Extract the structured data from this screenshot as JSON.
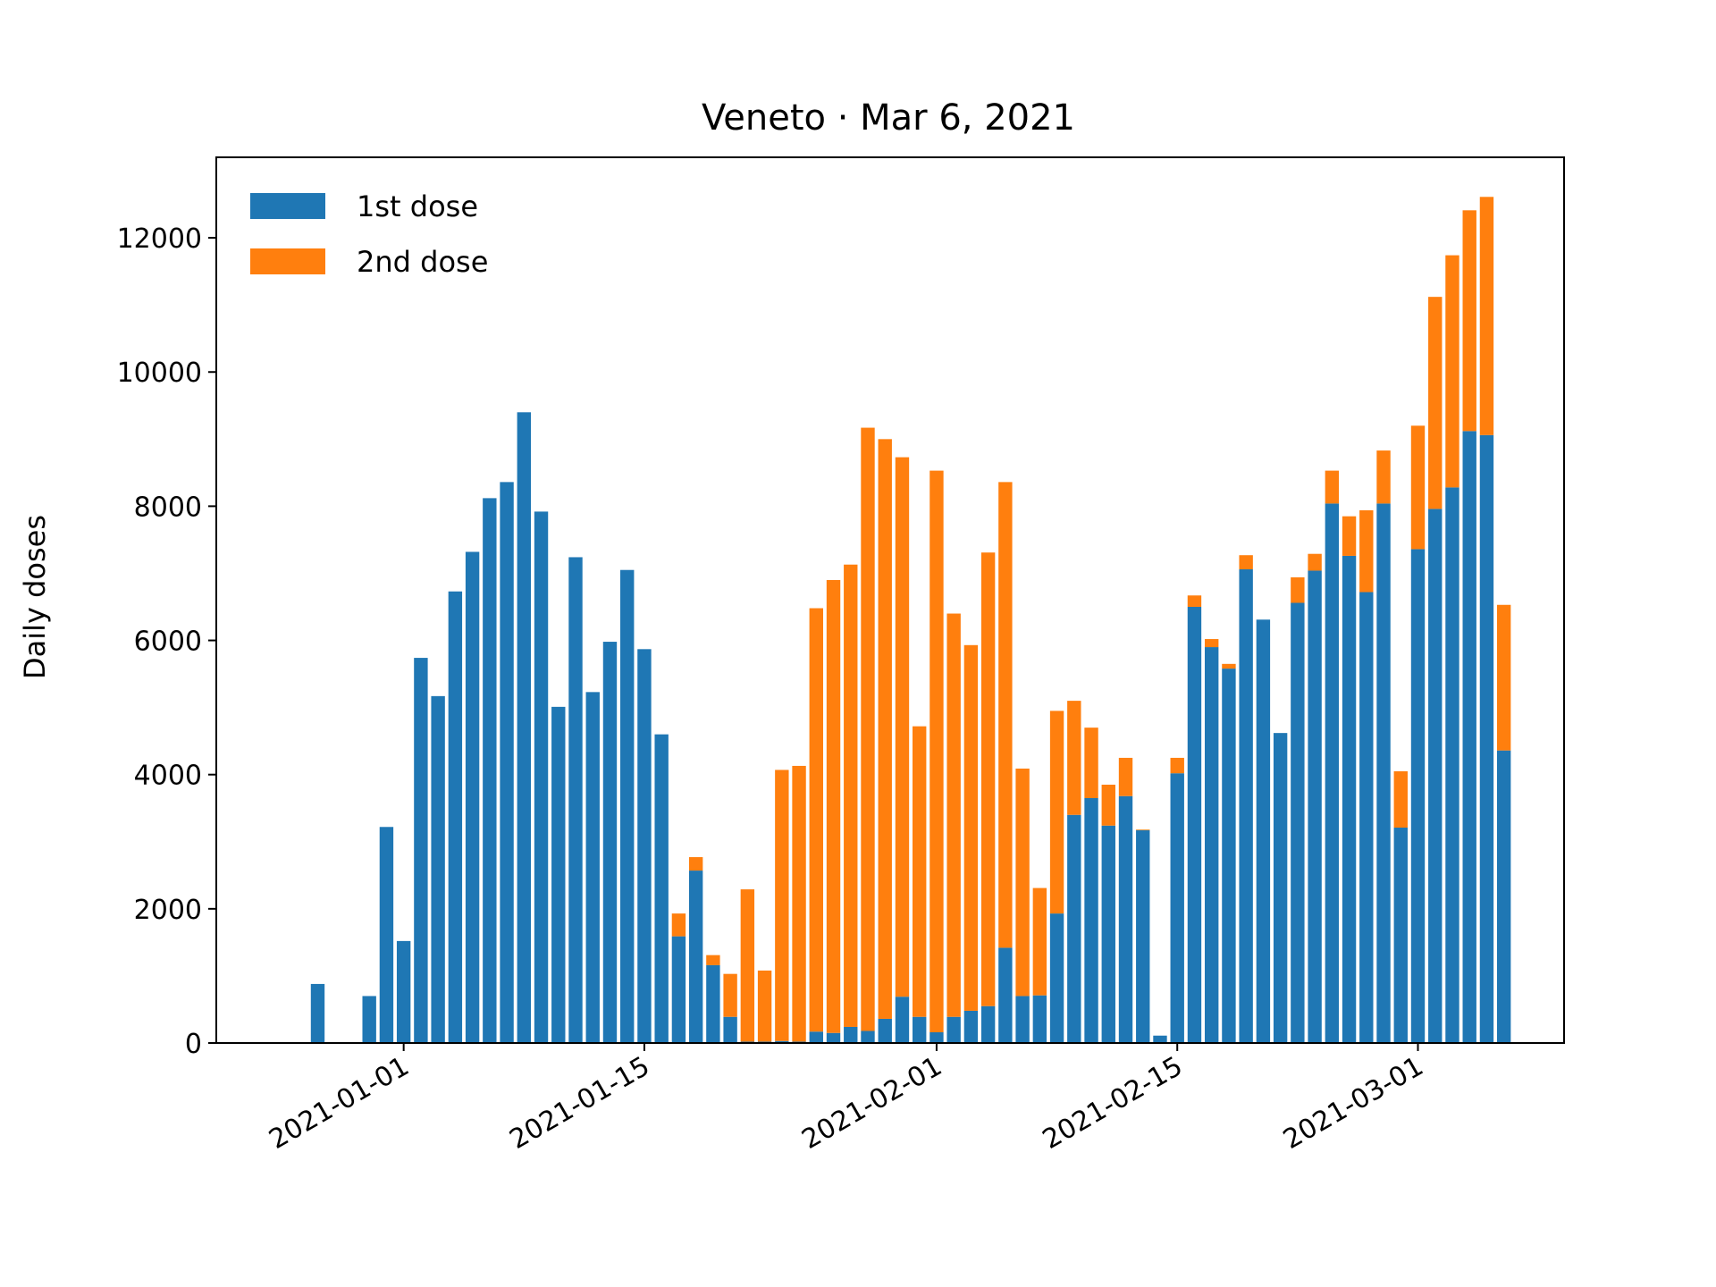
{
  "chart_data": {
    "type": "bar",
    "stacked": true,
    "title": "Veneto · Mar 6, 2021",
    "xlabel": "",
    "ylabel": "Daily doses",
    "ylim": [
      0,
      13200
    ],
    "yticks": [
      0,
      2000,
      4000,
      6000,
      8000,
      10000,
      12000
    ],
    "xtick_labels": [
      "2021-01-01",
      "2021-01-15",
      "2021-02-01",
      "2021-02-15",
      "2021-03-01"
    ],
    "grid": false,
    "legend": "top-left",
    "x": [
      "2020-12-27",
      "2020-12-28",
      "2020-12-29",
      "2020-12-30",
      "2020-12-31",
      "2021-01-01",
      "2021-01-02",
      "2021-01-03",
      "2021-01-04",
      "2021-01-05",
      "2021-01-06",
      "2021-01-07",
      "2021-01-08",
      "2021-01-09",
      "2021-01-10",
      "2021-01-11",
      "2021-01-12",
      "2021-01-13",
      "2021-01-14",
      "2021-01-15",
      "2021-01-16",
      "2021-01-17",
      "2021-01-18",
      "2021-01-19",
      "2021-01-20",
      "2021-01-21",
      "2021-01-22",
      "2021-01-23",
      "2021-01-24",
      "2021-01-25",
      "2021-01-26",
      "2021-01-27",
      "2021-01-28",
      "2021-01-29",
      "2021-01-30",
      "2021-01-31",
      "2021-02-01",
      "2021-02-02",
      "2021-02-03",
      "2021-02-04",
      "2021-02-05",
      "2021-02-06",
      "2021-02-07",
      "2021-02-08",
      "2021-02-09",
      "2021-02-10",
      "2021-02-11",
      "2021-02-12",
      "2021-02-13",
      "2021-02-14",
      "2021-02-15",
      "2021-02-16",
      "2021-02-17",
      "2021-02-18",
      "2021-02-19",
      "2021-02-20",
      "2021-02-21",
      "2021-02-22",
      "2021-02-23",
      "2021-02-24",
      "2021-02-25",
      "2021-02-26",
      "2021-02-27",
      "2021-02-28",
      "2021-03-01",
      "2021-03-02",
      "2021-03-03",
      "2021-03-04",
      "2021-03-05",
      "2021-03-06"
    ],
    "series": [
      {
        "name": "1st dose",
        "color": "#1f77b4",
        "values": [
          880,
          0,
          0,
          700,
          3220,
          1520,
          5740,
          5170,
          6730,
          7320,
          8120,
          8360,
          9400,
          7920,
          5010,
          7240,
          5230,
          5980,
          7050,
          5870,
          4600,
          1590,
          2570,
          1160,
          390,
          20,
          20,
          30,
          20,
          170,
          150,
          240,
          180,
          360,
          690,
          390,
          160,
          390,
          480,
          550,
          1420,
          700,
          710,
          1930,
          3400,
          3650,
          3240,
          3680,
          3170,
          110,
          4020,
          6500,
          5900,
          5580,
          7060,
          6310,
          4620,
          6560,
          7040,
          8040,
          7260,
          6720,
          8040,
          3210,
          7360,
          7960,
          8280,
          9120,
          9060,
          4360
        ]
      },
      {
        "name": "2nd dose",
        "color": "#ff7f0e",
        "values": [
          0,
          0,
          0,
          0,
          0,
          0,
          0,
          0,
          0,
          0,
          0,
          0,
          0,
          0,
          0,
          0,
          0,
          0,
          0,
          0,
          0,
          340,
          200,
          150,
          640,
          2270,
          1060,
          4040,
          4110,
          6310,
          6750,
          6890,
          8990,
          8640,
          8040,
          4330,
          8370,
          6010,
          5450,
          6760,
          6940,
          3390,
          1600,
          3020,
          1700,
          1050,
          610,
          570,
          10,
          0,
          230,
          170,
          120,
          70,
          210,
          0,
          0,
          380,
          250,
          490,
          590,
          1220,
          790,
          840,
          1840,
          3160,
          3460,
          3290,
          3550,
          2170
        ]
      }
    ]
  }
}
